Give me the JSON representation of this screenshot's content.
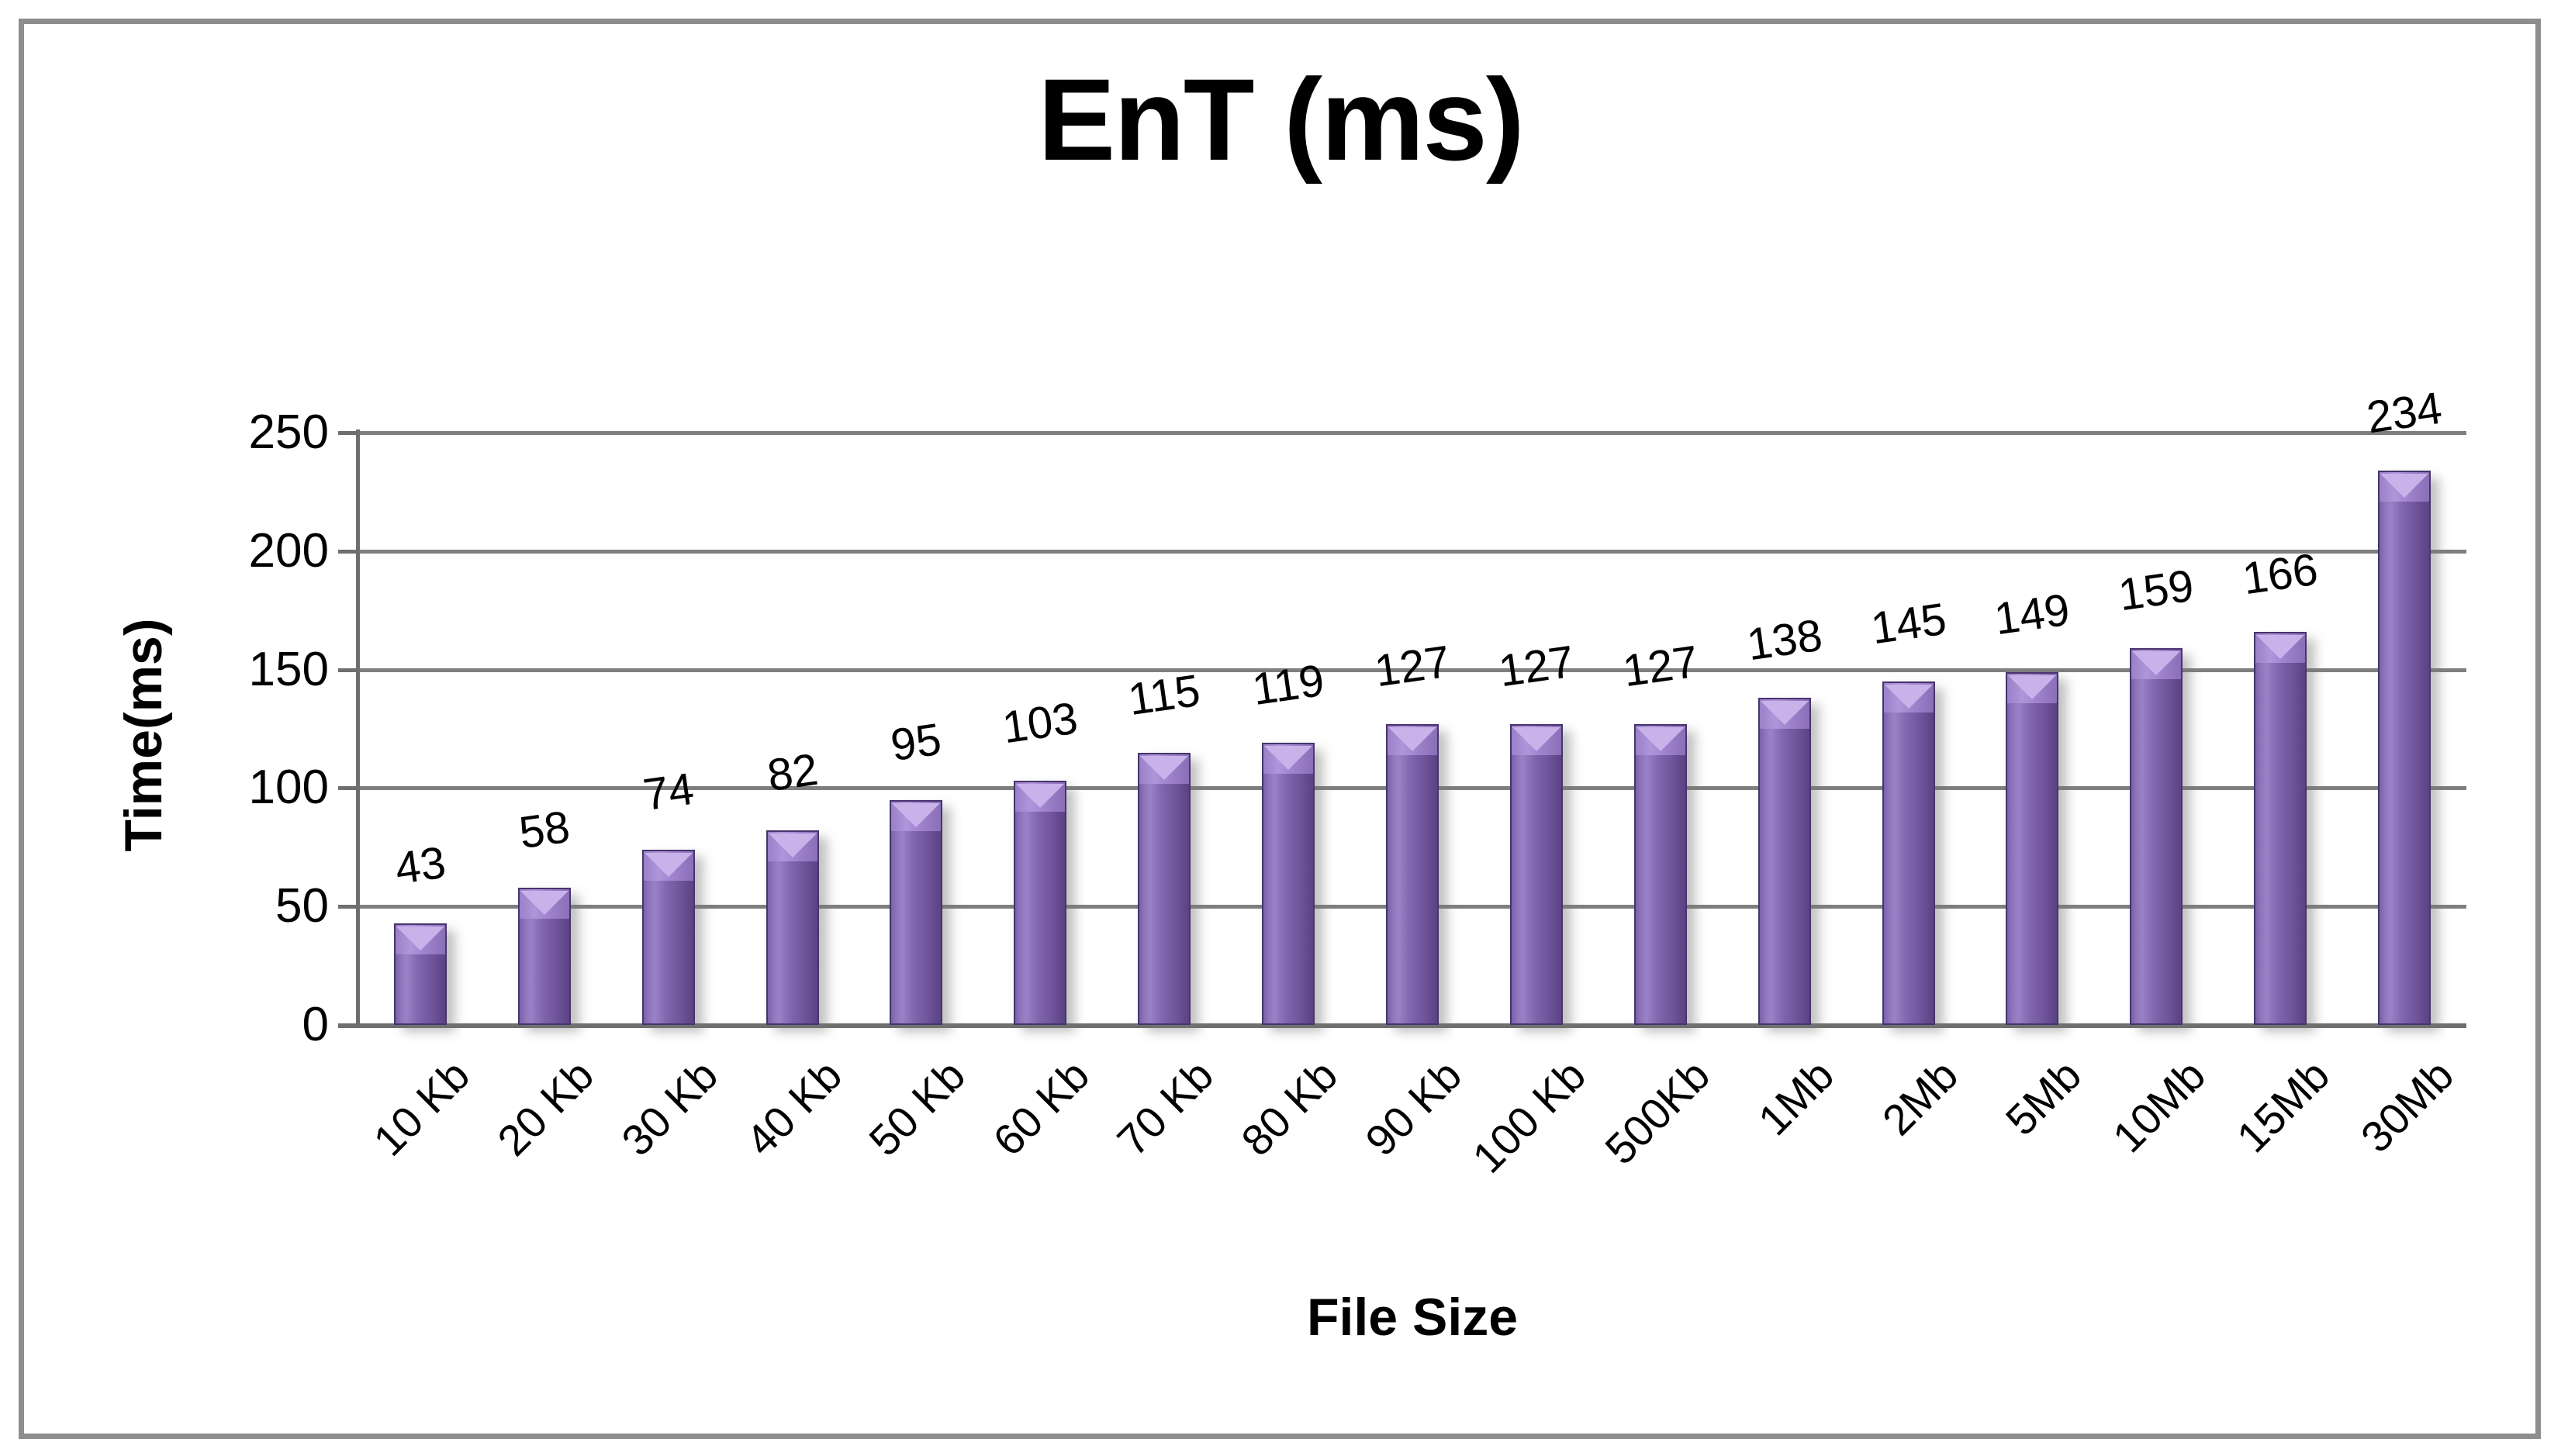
{
  "chart_data": {
    "type": "bar",
    "title": "EnT (ms)",
    "xlabel": "File Size",
    "ylabel": "Time(ms)",
    "categories": [
      "10 Kb",
      "20 Kb",
      "30 Kb",
      "40 Kb",
      "50 Kb",
      "60 Kb",
      "70 Kb",
      "80 Kb",
      "90 Kb",
      "100 Kb",
      "500Kb",
      "1Mb",
      "2Mb",
      "5Mb",
      "10Mb",
      "15Mb",
      "30Mb"
    ],
    "values": [
      43,
      58,
      74,
      82,
      95,
      103,
      115,
      119,
      127,
      127,
      127,
      138,
      145,
      149,
      159,
      166,
      234
    ],
    "ylim": [
      0,
      250
    ],
    "yticks": [
      0,
      50,
      100,
      150,
      200,
      250
    ],
    "grid": true,
    "legend": false,
    "data_labels_shown": true,
    "colors": {
      "bar_mid": "#74589f",
      "bar_light": "#9a82c6",
      "bar_dark": "#5a4384",
      "bar_edge": "#46356b",
      "cap_light": "#af95da",
      "notch": "#c9b1ea",
      "gridline": "#7f7f7f",
      "axis": "#6e6e6e",
      "frame_border": "#8d8d8d",
      "text": "#000000",
      "background": "#ffffff"
    }
  }
}
